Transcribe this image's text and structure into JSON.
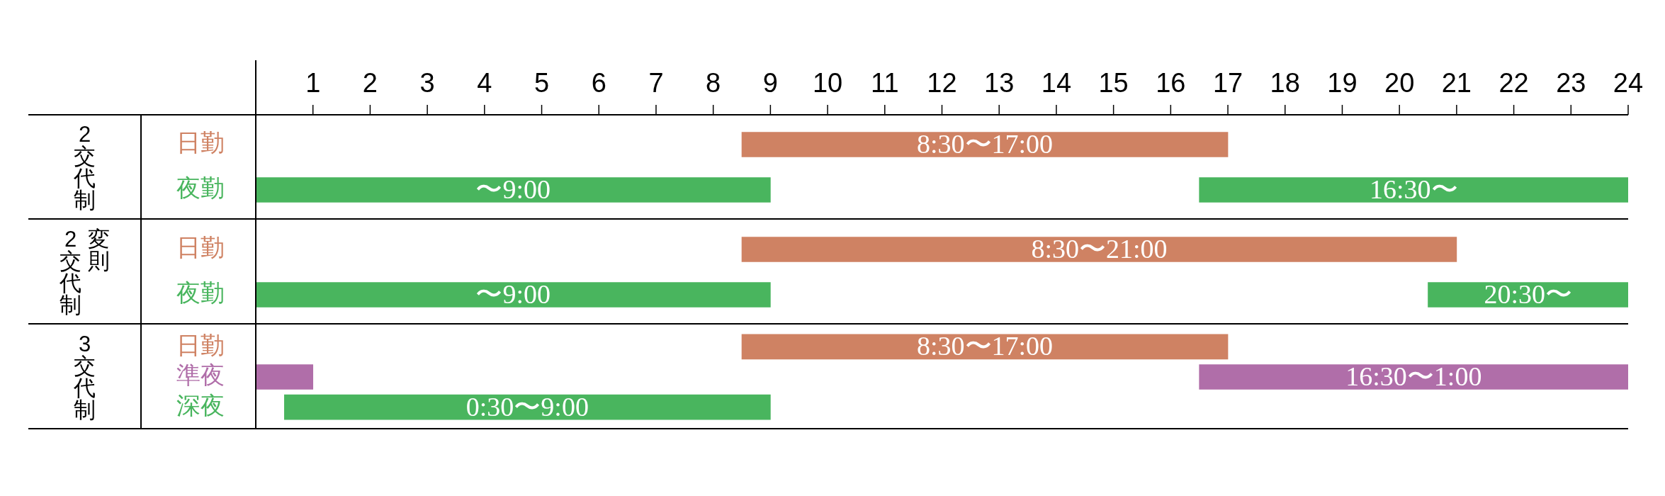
{
  "chart_data": [
    {
      "type": "bar",
      "title": "2交代制",
      "orientation": "horizontal",
      "categories": [
        "日勤",
        "夜勤"
      ],
      "series": [
        {
          "values": [
            8.5,
            9
          ],
          "base": [
            8.5,
            0
          ],
          "colors": [
            "#cf8263",
            "#49b55e"
          ],
          "value_labels": [
            "8:30〜17:00",
            "〜9:00"
          ]
        },
        {
          "values": [
            null,
            7.5
          ],
          "base": [
            null,
            16.5
          ],
          "colors": [
            null,
            "#49b55e"
          ],
          "value_labels": [
            null,
            "16:30〜"
          ]
        }
      ],
      "xlim": [
        0,
        24
      ],
      "xticks": [
        1,
        2,
        3,
        4,
        5,
        6,
        7,
        8,
        9,
        10,
        11,
        12,
        13,
        14,
        15,
        16,
        17,
        18,
        19,
        20,
        21,
        22,
        23,
        24
      ]
    },
    {
      "type": "bar",
      "title": "変則\n2交代制",
      "orientation": "horizontal",
      "categories": [
        "日勤",
        "夜勤"
      ],
      "series": [
        {
          "values": [
            12.5,
            9
          ],
          "base": [
            8.5,
            0
          ],
          "colors": [
            "#cf8263",
            "#49b55e"
          ],
          "value_labels": [
            "8:30〜21:00",
            "〜9:00"
          ]
        },
        {
          "values": [
            null,
            3.5
          ],
          "base": [
            null,
            20.5
          ],
          "colors": [
            null,
            "#49b55e"
          ],
          "value_labels": [
            null,
            "20:30〜"
          ]
        }
      ],
      "xlim": [
        0,
        24
      ],
      "tick_labels": "y"
    },
    {
      "type": "bar",
      "title": "3交代制",
      "orientation": "horizontal",
      "categories": [
        "日勤",
        "準夜",
        "深夜"
      ],
      "series": [
        {
          "values": [
            8.5,
            1,
            8.5
          ],
          "base": [
            8.5,
            0,
            0.5
          ],
          "colors": [
            "#cf8263",
            "#b06ea9",
            "#49b55e"
          ],
          "value_labels": [
            "8:30〜17:00",
            null,
            "0:30〜9:00"
          ]
        },
        {
          "values": [
            null,
            7.5,
            null
          ],
          "base": [
            null,
            16.5,
            null
          ],
          "colors": [
            null,
            "#b06ea9",
            null
          ],
          "value_labels": [
            null,
            "16:30〜1:00",
            null
          ]
        }
      ],
      "xlim": [
        0,
        24
      ],
      "tick_labels": "y"
    }
  ]
}
